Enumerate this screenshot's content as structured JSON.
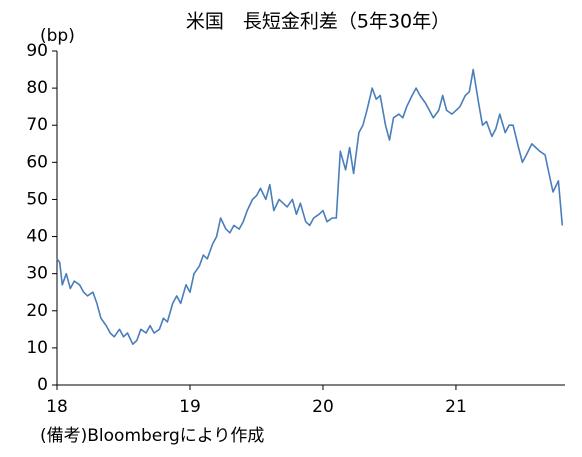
{
  "chart_data": {
    "type": "line",
    "title": "米国　長短金利差（5年30年）",
    "y_label": "(bp)",
    "note": "(備考)Bloombergにより作成",
    "x": [
      18.0,
      18.02,
      18.04,
      18.07,
      18.1,
      18.13,
      18.17,
      18.2,
      18.23,
      18.27,
      18.3,
      18.33,
      18.37,
      18.4,
      18.43,
      18.47,
      18.5,
      18.53,
      18.57,
      18.6,
      18.63,
      18.67,
      18.7,
      18.73,
      18.77,
      18.8,
      18.83,
      18.87,
      18.9,
      18.93,
      18.97,
      19.0,
      19.03,
      19.07,
      19.1,
      19.13,
      19.17,
      19.2,
      19.23,
      19.27,
      19.3,
      19.33,
      19.37,
      19.4,
      19.43,
      19.47,
      19.5,
      19.53,
      19.57,
      19.6,
      19.63,
      19.67,
      19.7,
      19.73,
      19.77,
      19.8,
      19.83,
      19.87,
      19.9,
      19.93,
      19.97,
      20.0,
      20.03,
      20.07,
      20.1,
      20.13,
      20.17,
      20.2,
      20.23,
      20.27,
      20.3,
      20.33,
      20.37,
      20.4,
      20.43,
      20.47,
      20.5,
      20.53,
      20.57,
      20.6,
      20.63,
      20.67,
      20.7,
      20.73,
      20.77,
      20.8,
      20.83,
      20.87,
      20.9,
      20.93,
      20.97,
      21.0,
      21.03,
      21.07,
      21.1,
      21.13,
      21.17,
      21.2,
      21.23,
      21.27,
      21.3,
      21.33,
      21.37,
      21.4,
      21.43,
      21.47,
      21.5,
      21.53,
      21.57,
      21.6,
      21.63,
      21.67,
      21.7,
      21.73,
      21.77,
      21.8
    ],
    "series": [
      {
        "color": "#4a7ebb",
        "values": [
          34,
          33,
          27,
          30,
          26,
          28,
          27,
          25,
          24,
          25,
          22,
          18,
          16,
          14,
          13,
          15,
          13,
          14,
          11,
          12,
          15,
          14,
          16,
          14,
          15,
          18,
          17,
          22,
          24,
          22,
          27,
          25,
          30,
          32,
          35,
          34,
          38,
          40,
          45,
          42,
          41,
          43,
          42,
          44,
          47,
          50,
          51,
          53,
          50,
          54,
          47,
          50,
          49,
          48,
          50,
          46,
          49,
          44,
          43,
          45,
          46,
          47,
          44,
          45,
          45,
          63,
          58,
          64,
          57,
          68,
          70,
          74,
          80,
          77,
          78,
          70,
          66,
          72,
          73,
          72,
          75,
          78,
          80,
          78,
          76,
          74,
          72,
          74,
          78,
          74,
          73,
          74,
          75,
          78,
          79,
          85,
          76,
          70,
          71,
          67,
          69,
          73,
          68,
          70,
          70,
          64,
          60,
          62,
          65,
          64,
          63,
          62,
          57,
          52,
          55,
          43
        ]
      }
    ],
    "xlim": [
      18,
      21.82
    ],
    "xticks": [
      18,
      19,
      20,
      21
    ],
    "ylim": [
      0,
      90
    ],
    "yticks": [
      0,
      10,
      20,
      30,
      40,
      50,
      60,
      70,
      80,
      90
    ]
  }
}
